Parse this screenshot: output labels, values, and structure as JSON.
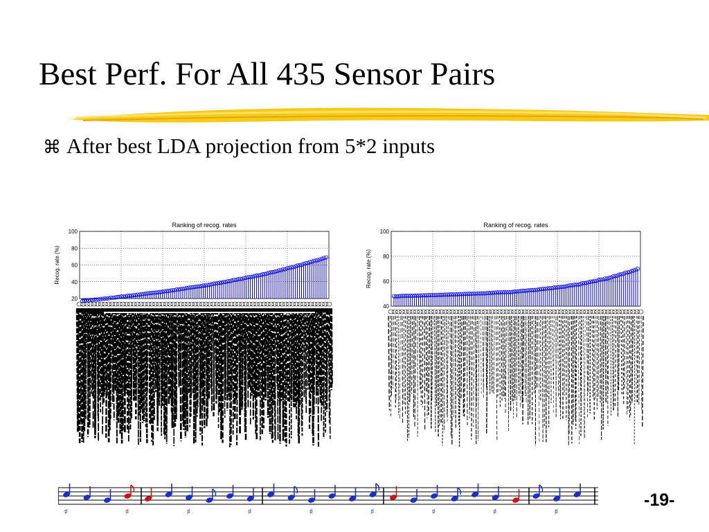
{
  "slide": {
    "title": "Best Perf. For All 435 Sensor Pairs",
    "bullet_icon": "command-key-icon",
    "bullet_text": "After best LDA projection from 5*2 inputs",
    "page_number": "-19-",
    "underline_color": "#f5c400",
    "footer_icon": "music-notes-icon",
    "note_colors": [
      "#1a2ecf",
      "#d01010"
    ]
  },
  "chart_data": [
    {
      "type": "stem",
      "title": "Ranking of recog. rates",
      "ylabel": "Recog. rate (%)",
      "xlabel": "",
      "ylim": [
        20,
        100
      ],
      "yticks": [
        20,
        40,
        60,
        80,
        100
      ],
      "grid": true,
      "marker": "open-circle",
      "color": "#0000ff",
      "n_points": 435,
      "min_value": 17,
      "max_value": 69,
      "x_tick_labels_illegible": true
    },
    {
      "type": "stem",
      "title": "Ranking of recog. rates",
      "ylabel": "Recog. rate (%)",
      "xlabel": "",
      "ylim": [
        40,
        100
      ],
      "yticks": [
        40,
        60,
        80,
        100
      ],
      "grid": true,
      "marker": "open-circle",
      "color": "#0000ff",
      "n_points": 435,
      "min_value": 48,
      "max_value": 70,
      "x_tick_labels_illegible": true
    }
  ]
}
